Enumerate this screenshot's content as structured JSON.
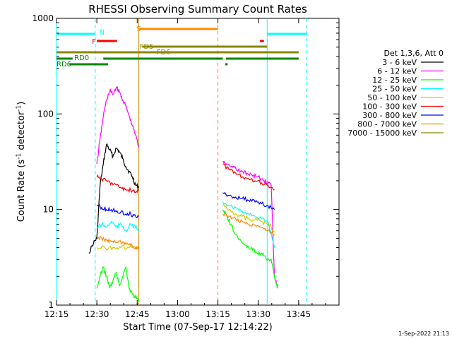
{
  "chart_data": {
    "type": "line",
    "title": "RHESSI Observing Summary Count Rates",
    "xlabel": "Start Time (07-Sep-17 12:14:22)",
    "ylabel_main": "Count Rate (s",
    "ylabel_sup1": "-1",
    "ylabel_mid": " detector",
    "ylabel_sup2": "-1",
    "ylabel_end": ")",
    "yscale": "log",
    "ylim": [
      1,
      1000
    ],
    "xlim_minutes": [
      12.25,
      14.0
    ],
    "x_ticks": [
      {
        "label": "12:15",
        "t": 12.25
      },
      {
        "label": "12:30",
        "t": 12.5
      },
      {
        "label": "12:45",
        "t": 12.75
      },
      {
        "label": "13:00",
        "t": 13.0
      },
      {
        "label": "13:15",
        "t": 13.25
      },
      {
        "label": "13:30",
        "t": 13.5
      },
      {
        "label": "13:45",
        "t": 13.75
      }
    ],
    "y_ticks": [
      {
        "label": "1",
        "v": 1
      },
      {
        "label": "10",
        "v": 10
      },
      {
        "label": "100",
        "v": 100
      },
      {
        "label": "1000",
        "v": 1000
      }
    ],
    "legend_header": "Det 1,3,6, Att 0",
    "legend_position": "right",
    "footer": "1-Sep-2022 21:13",
    "series": [
      {
        "name": "3 - 6 keV",
        "color": "#000000",
        "seg1": {
          "x": [
            12.45,
            12.48,
            12.5,
            12.52,
            12.54,
            12.56,
            12.58,
            12.6,
            12.62,
            12.64,
            12.66,
            12.68,
            12.7,
            12.72,
            12.74,
            12.76
          ],
          "y": [
            3.5,
            4.5,
            5,
            18,
            30,
            48,
            42,
            36,
            44,
            40,
            34,
            28,
            25,
            22,
            18,
            17
          ]
        },
        "seg2": null
      },
      {
        "name": "6 - 12 keV",
        "color": "#ff00ff",
        "seg1": {
          "x": [
            12.5,
            12.52,
            12.54,
            12.56,
            12.58,
            12.6,
            12.62,
            12.64,
            12.66,
            12.68,
            12.7,
            12.72,
            12.74,
            12.76
          ],
          "y": [
            30,
            55,
            95,
            140,
            175,
            160,
            190,
            170,
            140,
            120,
            95,
            75,
            60,
            45
          ]
        },
        "seg2": {
          "x": [
            13.28,
            13.3,
            13.33,
            13.36,
            13.4,
            13.43,
            13.46,
            13.49,
            13.52,
            13.55,
            13.58,
            13.6,
            13.62
          ],
          "y": [
            32,
            30,
            28,
            27,
            25,
            24,
            23,
            22,
            21,
            19,
            18,
            2,
            1.5
          ]
        }
      },
      {
        "name": "12 - 25 keV",
        "color": "#00ff00",
        "seg1": {
          "x": [
            12.5,
            12.52,
            12.54,
            12.56,
            12.58,
            12.6,
            12.62,
            12.64,
            12.66,
            12.68,
            12.7,
            12.72,
            12.74,
            12.76
          ],
          "y": [
            1.5,
            2,
            2.5,
            2,
            1.5,
            1.8,
            2.2,
            1.6,
            2,
            2.5,
            1.5,
            1.3,
            1.2,
            1.1
          ]
        },
        "seg2": {
          "x": [
            13.28,
            13.3,
            13.33,
            13.36,
            13.4,
            13.43,
            13.46,
            13.49,
            13.52,
            13.55,
            13.58,
            13.6,
            13.62
          ],
          "y": [
            10,
            9,
            7,
            5.5,
            4.5,
            4,
            4,
            3.5,
            3.5,
            3,
            3,
            2,
            1.5
          ]
        }
      },
      {
        "name": "25 - 50 keV",
        "color": "#00ffff",
        "seg1": {
          "x": [
            12.5,
            12.53,
            12.56,
            12.59,
            12.62,
            12.65,
            12.68,
            12.71,
            12.74,
            12.76
          ],
          "y": [
            6.5,
            7,
            6.5,
            7.5,
            6.5,
            7,
            6,
            7,
            6.5,
            6
          ]
        },
        "seg2": {
          "x": [
            13.28,
            13.32,
            13.36,
            13.4,
            13.44,
            13.48,
            13.52,
            13.56,
            13.6
          ],
          "y": [
            12,
            11,
            10.5,
            9.5,
            9,
            8.5,
            8,
            7.5,
            4
          ]
        }
      },
      {
        "name": "50 - 100 keV",
        "color": "#cccc00",
        "seg1": {
          "x": [
            12.5,
            12.55,
            12.6,
            12.65,
            12.7,
            12.76
          ],
          "y": [
            4,
            4,
            4,
            4,
            4,
            4
          ]
        },
        "seg2": {
          "x": [
            13.28,
            13.32,
            13.36,
            13.4,
            13.44,
            13.48,
            13.52,
            13.56,
            13.6
          ],
          "y": [
            11,
            10,
            9,
            8.5,
            8,
            7.8,
            7.5,
            7,
            6
          ]
        }
      },
      {
        "name": "100 - 300 keV",
        "color": "#ff0000",
        "seg1": {
          "x": [
            12.5,
            12.53,
            12.56,
            12.59,
            12.62,
            12.65,
            12.68,
            12.71,
            12.74,
            12.76
          ],
          "y": [
            22,
            21,
            20,
            19,
            18,
            17,
            16,
            16,
            15,
            16
          ]
        },
        "seg2": {
          "x": [
            13.28,
            13.32,
            13.36,
            13.4,
            13.44,
            13.48,
            13.52,
            13.56,
            13.6
          ],
          "y": [
            30,
            26,
            24,
            22,
            21,
            20,
            19,
            18,
            16
          ]
        }
      },
      {
        "name": "300 - 800 keV",
        "color": "#0000ff",
        "seg1": {
          "x": [
            12.5,
            12.53,
            12.56,
            12.59,
            12.62,
            12.65,
            12.68,
            12.71,
            12.74,
            12.76
          ],
          "y": [
            11,
            10.5,
            10,
            10,
            9.5,
            9.5,
            9,
            9,
            8.5,
            8.5
          ]
        },
        "seg2": {
          "x": [
            13.28,
            13.32,
            13.36,
            13.4,
            13.44,
            13.48,
            13.52,
            13.56,
            13.6
          ],
          "y": [
            15,
            14,
            13.5,
            13,
            12.5,
            12,
            11.5,
            11,
            10
          ]
        }
      },
      {
        "name": "800 - 7000 keV",
        "color": "#ff8800",
        "seg1": {
          "x": [
            12.5,
            12.53,
            12.56,
            12.59,
            12.62,
            12.65,
            12.68,
            12.71,
            12.74,
            12.76
          ],
          "y": [
            5,
            5,
            4.8,
            4.6,
            4.5,
            4.5,
            4.3,
            4.2,
            4,
            4
          ]
        },
        "seg2": {
          "x": [
            13.28,
            13.32,
            13.36,
            13.4,
            13.44,
            13.48,
            13.52,
            13.56,
            13.6
          ],
          "y": [
            9,
            8.5,
            8,
            7.5,
            7,
            6.8,
            6.5,
            6,
            5.5
          ]
        }
      },
      {
        "name": "7000 - 15000 keV",
        "color": "#888800",
        "seg1": null,
        "seg2": null
      }
    ],
    "vertical_lines": [
      {
        "t": 12.25,
        "color": "#00ffff",
        "dash": false
      },
      {
        "t": 12.49,
        "color": "#00ffff",
        "dash": true
      },
      {
        "t": 12.76,
        "color": "#cc8800",
        "dash": false
      },
      {
        "t": 13.25,
        "color": "#ff8800",
        "dash": true
      },
      {
        "t": 13.555,
        "color": "#00ffff",
        "dash": false
      },
      {
        "t": 13.8,
        "color": "#00ffff",
        "dash": true
      }
    ],
    "flag_bars": [
      {
        "label": "N",
        "color": "#00ffff",
        "y": 48,
        "segs": [
          [
            12.25,
            12.49
          ],
          [
            13.555,
            13.8
          ]
        ],
        "label_t": 12.515,
        "label_y": 45
      },
      {
        "label": "S",
        "color": "#ff8800",
        "y": 41,
        "segs": [
          [
            12.76,
            13.25
          ]
        ],
        "label_t": 12.745,
        "label_y": 40
      },
      {
        "label": "F",
        "color": "#ff0000",
        "y": 58,
        "segs": [
          [
            12.5,
            12.625
          ],
          [
            13.51,
            13.535
          ]
        ],
        "label_t": 12.47,
        "label_y": 58
      },
      {
        "label": "FD5",
        "color": "#888800",
        "y": 66,
        "segs": [
          [
            12.78,
            13.555
          ]
        ],
        "label_t": 12.765,
        "label_y": 65
      },
      {
        "label": "FD6",
        "color": "#888800",
        "y": 74,
        "segs": [
          [
            12.25,
            13.75
          ]
        ],
        "label_t": 12.87,
        "label_y": 73
      },
      {
        "label": "RD0",
        "color": "#008800",
        "y": 83,
        "segs": [
          [
            12.25,
            12.35
          ],
          [
            12.54,
            13.28
          ],
          [
            13.3,
            13.75
          ]
        ],
        "label_t": 12.36,
        "label_y": 81
      },
      {
        "label": "RD6",
        "color": "#008800",
        "y": 91,
        "segs": [
          [
            12.33,
            12.57
          ],
          [
            13.295,
            13.31
          ]
        ],
        "label_t": 12.25,
        "label_y": 90
      }
    ]
  }
}
